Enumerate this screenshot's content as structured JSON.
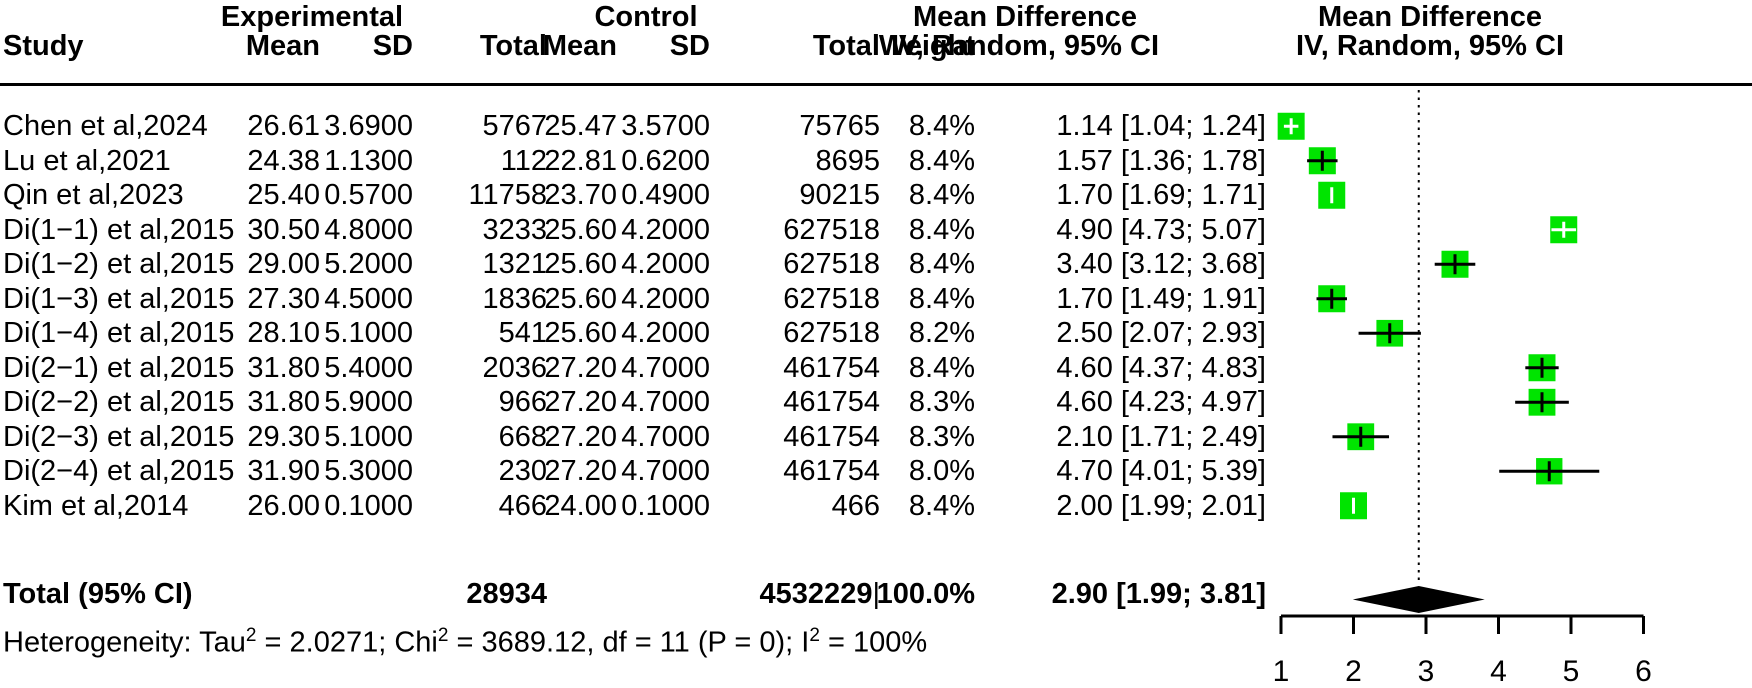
{
  "header": {
    "study": "Study",
    "group_experimental": "Experimental",
    "group_control": "Control",
    "col_mean": "Mean",
    "col_sd": "SD",
    "col_total": "Total",
    "col_weight": "Weight",
    "md_title": "Mean Difference",
    "md_subtitle": "IV, Random, 95% CI"
  },
  "colors": {
    "square": "#00e400",
    "ci_line": "#000000",
    "ci_line_inner": "#ffffff",
    "diamond": "#000000",
    "text": "#000000"
  },
  "chart_data": {
    "type": "scatter",
    "subtype": "forest-plot",
    "title": "Mean Difference IV, Random, 95% CI",
    "xlabel": "Mean Difference",
    "xlim": [
      1,
      6
    ],
    "xticks": [
      1,
      2,
      3,
      4,
      5,
      6
    ],
    "ref_line": 2.9,
    "grid": false,
    "studies": [
      {
        "name": "Chen et al,2024",
        "exp_mean": "26.61",
        "exp_sd": "3.6900",
        "exp_total": "5767",
        "ctrl_mean": "25.47",
        "ctrl_sd": "3.5700",
        "ctrl_total": "75765",
        "weight": "8.4%",
        "weight_val": 8.4,
        "md": 1.14,
        "lo": 1.04,
        "hi": 1.24,
        "md_text": "1.14 [1.04; 1.24]"
      },
      {
        "name": "Lu et al,2021",
        "exp_mean": "24.38",
        "exp_sd": "1.1300",
        "exp_total": "112",
        "ctrl_mean": "22.81",
        "ctrl_sd": "0.6200",
        "ctrl_total": "8695",
        "weight": "8.4%",
        "weight_val": 8.4,
        "md": 1.57,
        "lo": 1.36,
        "hi": 1.78,
        "md_text": "1.57 [1.36; 1.78]"
      },
      {
        "name": "Qin et al,2023",
        "exp_mean": "25.40",
        "exp_sd": "0.5700",
        "exp_total": "11758",
        "ctrl_mean": "23.70",
        "ctrl_sd": "0.4900",
        "ctrl_total": "90215",
        "weight": "8.4%",
        "weight_val": 8.4,
        "md": 1.7,
        "lo": 1.69,
        "hi": 1.71,
        "md_text": "1.70 [1.69; 1.71]"
      },
      {
        "name": "Di(1−1) et al,2015",
        "exp_mean": "30.50",
        "exp_sd": "4.8000",
        "exp_total": "3233",
        "ctrl_mean": "25.60",
        "ctrl_sd": "4.2000",
        "ctrl_total": "627518",
        "weight": "8.4%",
        "weight_val": 8.4,
        "md": 4.9,
        "lo": 4.73,
        "hi": 5.07,
        "md_text": "4.90 [4.73; 5.07]"
      },
      {
        "name": "Di(1−2) et al,2015",
        "exp_mean": "29.00",
        "exp_sd": "5.2000",
        "exp_total": "1321",
        "ctrl_mean": "25.60",
        "ctrl_sd": "4.2000",
        "ctrl_total": "627518",
        "weight": "8.4%",
        "weight_val": 8.4,
        "md": 3.4,
        "lo": 3.12,
        "hi": 3.68,
        "md_text": "3.40 [3.12; 3.68]"
      },
      {
        "name": "Di(1−3) et al,2015",
        "exp_mean": "27.30",
        "exp_sd": "4.5000",
        "exp_total": "1836",
        "ctrl_mean": "25.60",
        "ctrl_sd": "4.2000",
        "ctrl_total": "627518",
        "weight": "8.4%",
        "weight_val": 8.4,
        "md": 1.7,
        "lo": 1.49,
        "hi": 1.91,
        "md_text": "1.70 [1.49; 1.91]"
      },
      {
        "name": "Di(1−4) et al,2015",
        "exp_mean": "28.10",
        "exp_sd": "5.1000",
        "exp_total": "541",
        "ctrl_mean": "25.60",
        "ctrl_sd": "4.2000",
        "ctrl_total": "627518",
        "weight": "8.2%",
        "weight_val": 8.2,
        "md": 2.5,
        "lo": 2.07,
        "hi": 2.93,
        "md_text": "2.50 [2.07; 2.93]"
      },
      {
        "name": "Di(2−1) et al,2015",
        "exp_mean": "31.80",
        "exp_sd": "5.4000",
        "exp_total": "2036",
        "ctrl_mean": "27.20",
        "ctrl_sd": "4.7000",
        "ctrl_total": "461754",
        "weight": "8.4%",
        "weight_val": 8.4,
        "md": 4.6,
        "lo": 4.37,
        "hi": 4.83,
        "md_text": "4.60 [4.37; 4.83]"
      },
      {
        "name": "Di(2−2) et al,2015",
        "exp_mean": "31.80",
        "exp_sd": "5.9000",
        "exp_total": "966",
        "ctrl_mean": "27.20",
        "ctrl_sd": "4.7000",
        "ctrl_total": "461754",
        "weight": "8.3%",
        "weight_val": 8.3,
        "md": 4.6,
        "lo": 4.23,
        "hi": 4.97,
        "md_text": "4.60 [4.23; 4.97]"
      },
      {
        "name": "Di(2−3) et al,2015",
        "exp_mean": "29.30",
        "exp_sd": "5.1000",
        "exp_total": "668",
        "ctrl_mean": "27.20",
        "ctrl_sd": "4.7000",
        "ctrl_total": "461754",
        "weight": "8.3%",
        "weight_val": 8.3,
        "md": 2.1,
        "lo": 1.71,
        "hi": 2.49,
        "md_text": "2.10 [1.71; 2.49]"
      },
      {
        "name": "Di(2−4) et al,2015",
        "exp_mean": "31.90",
        "exp_sd": "5.3000",
        "exp_total": "230",
        "ctrl_mean": "27.20",
        "ctrl_sd": "4.7000",
        "ctrl_total": "461754",
        "weight": "8.0%",
        "weight_val": 8.0,
        "md": 4.7,
        "lo": 4.01,
        "hi": 5.39,
        "md_text": "4.70 [4.01; 5.39]"
      },
      {
        "name": "Kim et al,2014",
        "exp_mean": "26.00",
        "exp_sd": "0.1000",
        "exp_total": "466",
        "ctrl_mean": "24.00",
        "ctrl_sd": "0.1000",
        "ctrl_total": "466",
        "weight": "8.4%",
        "weight_val": 8.4,
        "md": 2.0,
        "lo": 1.99,
        "hi": 2.01,
        "md_text": "2.00 [1.99; 2.01]"
      }
    ],
    "total": {
      "label": "Total (95% CI)",
      "exp_total": "28934",
      "ctrl_total": "4532229",
      "cursor_artifact": "|",
      "weight": "100.0%",
      "md": 2.9,
      "lo": 1.99,
      "hi": 3.81,
      "md_text": "2.90 [1.99; 3.81]"
    },
    "heterogeneity": {
      "tau2": "2.0271",
      "chi2": "3689.12",
      "df": "11",
      "p": "0",
      "i2": "100%"
    },
    "heterogeneity_parts": [
      "Heterogeneity: Tau",
      "2",
      " = 2.0271; Chi",
      "2",
      " = 3689.12, df = 11 (P = 0); I",
      "2",
      " = 100%"
    ]
  }
}
